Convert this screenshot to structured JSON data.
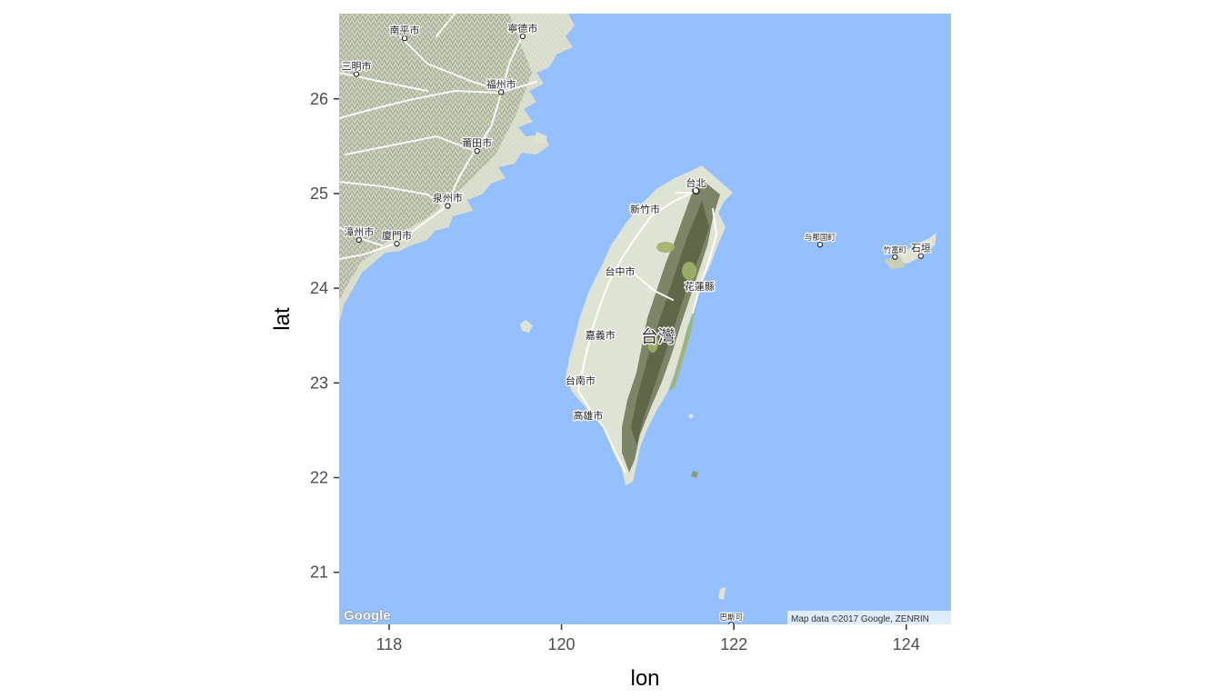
{
  "axes": {
    "xlabel": "lon",
    "ylabel": "lat",
    "xlim": [
      117.42,
      124.52
    ],
    "ylim": [
      20.45,
      26.9
    ],
    "xticks": [
      118,
      120,
      122,
      124
    ],
    "yticks": [
      21,
      22,
      23,
      24,
      25,
      26
    ]
  },
  "colors": {
    "sea": "#94c0ff",
    "land": "#dfe3d3",
    "terrain": "#8f987e",
    "mountain": "#6b7558",
    "forest": "#9fb46a",
    "road": "#ffffff",
    "tick": "#333333",
    "tick_label": "#4d4d4d"
  },
  "places": [
    {
      "name": "南平市",
      "lon": 118.18,
      "lat": 26.64,
      "dot": true
    },
    {
      "name": "寧德市",
      "lon": 119.55,
      "lat": 26.66,
      "dot": true
    },
    {
      "name": "三明市",
      "lon": 117.62,
      "lat": 26.26,
      "dot": true
    },
    {
      "name": "福州市",
      "lon": 119.3,
      "lat": 26.07,
      "dot": true
    },
    {
      "name": "莆田市",
      "lon": 119.02,
      "lat": 25.45,
      "dot": true
    },
    {
      "name": "泉州市",
      "lon": 118.68,
      "lat": 24.87,
      "dot": true
    },
    {
      "name": "廈門市",
      "lon": 118.09,
      "lat": 24.47,
      "dot": true
    },
    {
      "name": "漳州市",
      "lon": 117.65,
      "lat": 24.51,
      "dot": true
    },
    {
      "name": "台北",
      "lon": 121.56,
      "lat": 25.03,
      "dot": true,
      "capital": true
    },
    {
      "name": "新竹市",
      "lon": 120.97,
      "lat": 24.8,
      "dot": false
    },
    {
      "name": "台中市",
      "lon": 120.68,
      "lat": 24.14,
      "dot": false
    },
    {
      "name": "花蓮縣",
      "lon": 121.6,
      "lat": 23.98,
      "dot": false
    },
    {
      "name": "台灣",
      "lon": 121.12,
      "lat": 23.43,
      "dot": false,
      "big": true
    },
    {
      "name": "嘉義市",
      "lon": 120.45,
      "lat": 23.47,
      "dot": false
    },
    {
      "name": "台南市",
      "lon": 120.22,
      "lat": 22.99,
      "dot": false
    },
    {
      "name": "高雄市",
      "lon": 120.31,
      "lat": 22.62,
      "dot": false
    },
    {
      "name": "与那国町",
      "lon": 123.0,
      "lat": 24.46,
      "dot": true,
      "small": true
    },
    {
      "name": "石垣",
      "lon": 124.17,
      "lat": 24.34,
      "dot": true
    },
    {
      "name": "竹富町",
      "lon": 123.87,
      "lat": 24.33,
      "dot": true,
      "small": true
    },
    {
      "name": "巴斯可",
      "lon": 121.97,
      "lat": 20.45,
      "dot": true,
      "small": true
    }
  ],
  "attribution": {
    "logo": "Google",
    "text": "Map data ©2017 Google, ZENRIN"
  }
}
